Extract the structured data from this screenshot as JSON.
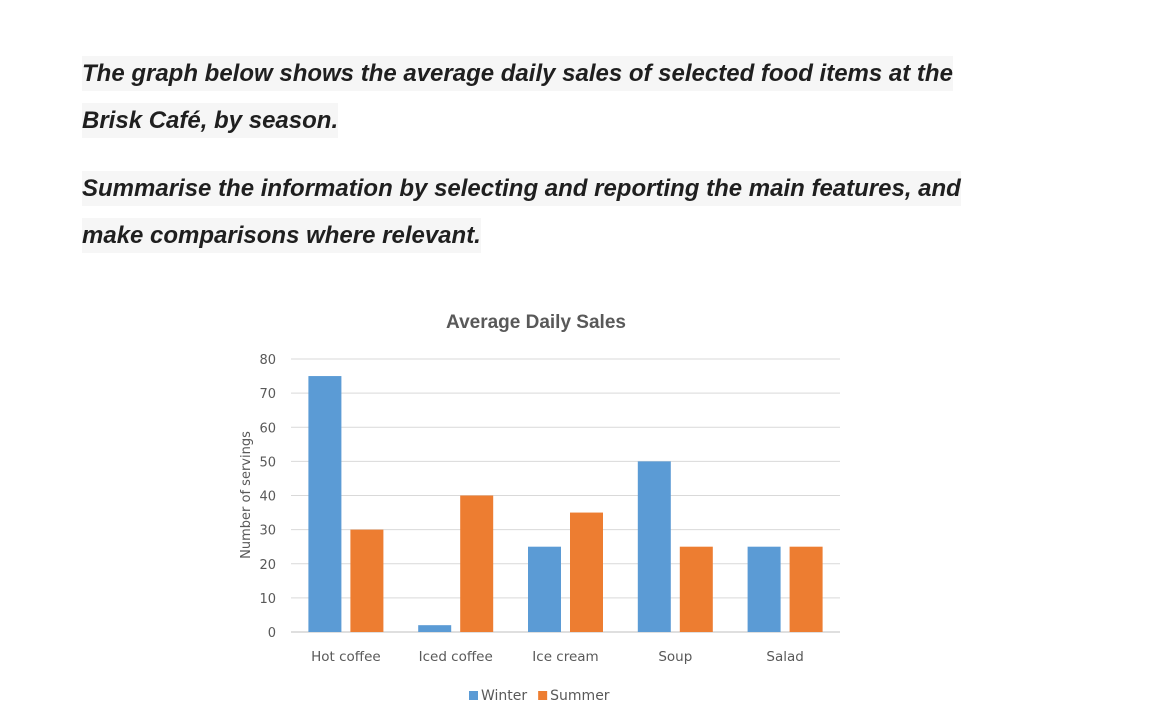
{
  "prompt": {
    "line1": "The graph below shows the average daily sales of selected food items at the",
    "line2": "Brisk Café, by season.",
    "line3": "Summarise the information by selecting and reporting the main features, and",
    "line4": "make comparisons where relevant."
  },
  "chart_data": {
    "type": "bar",
    "title": "Average Daily Sales",
    "xlabel": "",
    "ylabel": "Number of servings",
    "ylim": [
      0,
      80
    ],
    "yticks": [
      0,
      10,
      20,
      30,
      40,
      50,
      60,
      70,
      80
    ],
    "categories": [
      "Hot coffee",
      "Iced coffee",
      "Ice cream",
      "Soup",
      "Salad"
    ],
    "series": [
      {
        "name": "Winter",
        "color": "#5b9bd5",
        "values": [
          75,
          2,
          25,
          50,
          25
        ]
      },
      {
        "name": "Summer",
        "color": "#ed7d31",
        "values": [
          30,
          40,
          35,
          25,
          25
        ]
      }
    ],
    "grid": true,
    "legend": "bottom-center"
  }
}
